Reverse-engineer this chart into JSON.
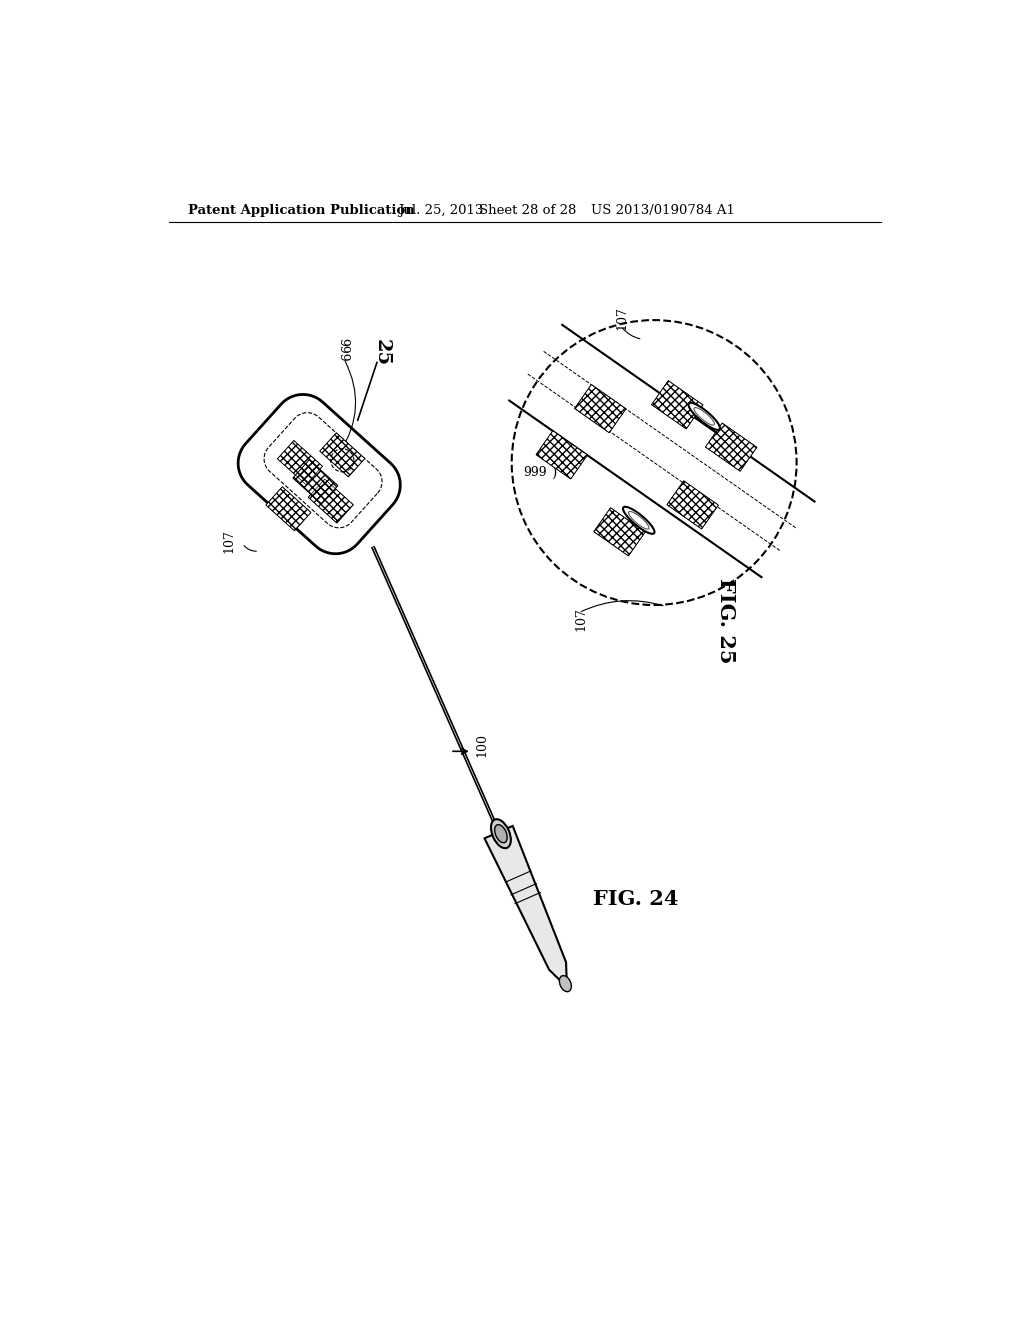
{
  "background_color": "#ffffff",
  "header_text": "Patent Application Publication",
  "header_date": "Jul. 25, 2013",
  "header_sheet": "Sheet 28 of 28",
  "header_patent": "US 2013/0190784 A1",
  "fig24_label": "FIG. 24",
  "fig25_label": "FIG. 25",
  "label_999": "999",
  "label_107": "107",
  "label_25": "25",
  "label_100": "100"
}
